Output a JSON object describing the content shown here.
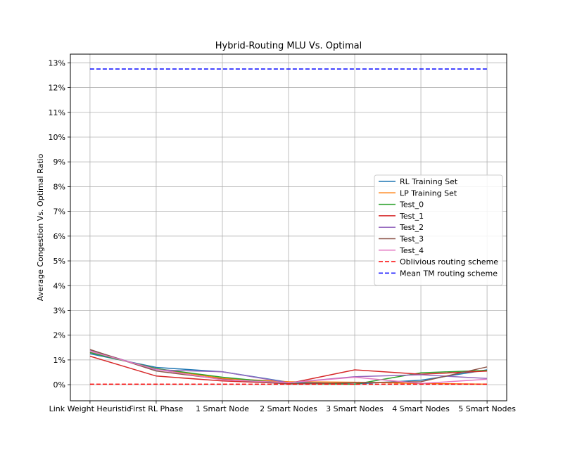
{
  "chart_data": {
    "type": "line",
    "title": "Hybrid-Routing MLU Vs. Optimal",
    "xlabel": "",
    "ylabel": "Average Congestion Vs. Optimal Ratio",
    "categories": [
      "Link Weight Heuristic",
      "First RL Phase",
      "1 Smart Node",
      "2 Smart Nodes",
      "3 Smart Nodes",
      "4 Smart Nodes",
      "5 Smart Nodes"
    ],
    "ylim": [
      -0.65,
      13.35
    ],
    "yticks": [
      0,
      1,
      2,
      3,
      4,
      5,
      6,
      7,
      8,
      9,
      10,
      11,
      12,
      13
    ],
    "ytick_labels": [
      "0%",
      "1%",
      "2%",
      "3%",
      "4%",
      "5%",
      "6%",
      "7%",
      "8%",
      "9%",
      "10%",
      "11%",
      "12%",
      "13%"
    ],
    "grid": true,
    "legend_position": "center-right",
    "series": [
      {
        "name": "RL Training Set",
        "color": "#1f77b4",
        "style": "solid",
        "values": [
          1.25,
          0.7,
          0.52,
          0.1,
          0.03,
          0.18,
          0.6
        ]
      },
      {
        "name": "LP Training Set",
        "color": "#ff7f0e",
        "style": "solid",
        "values": [
          1.3,
          0.65,
          0.25,
          0.12,
          0.1,
          0.05,
          0.02
        ]
      },
      {
        "name": "Test_0",
        "color": "#2ca02c",
        "style": "solid",
        "values": [
          1.3,
          0.65,
          0.3,
          0.05,
          0.02,
          0.48,
          0.58
        ]
      },
      {
        "name": "Test_1",
        "color": "#d62728",
        "style": "solid",
        "values": [
          1.15,
          0.35,
          0.15,
          0.05,
          0.6,
          0.42,
          0.55
        ]
      },
      {
        "name": "Test_2",
        "color": "#9467bd",
        "style": "solid",
        "values": [
          1.4,
          0.6,
          0.52,
          0.08,
          0.32,
          0.4,
          0.25
        ]
      },
      {
        "name": "Test_3",
        "color": "#8c564b",
        "style": "solid",
        "values": [
          1.42,
          0.55,
          0.22,
          0.03,
          0.08,
          0.12,
          0.72
        ]
      },
      {
        "name": "Test_4",
        "color": "#e377c2",
        "style": "solid",
        "values": [
          1.35,
          0.62,
          0.2,
          0.08,
          0.3,
          0.05,
          0.22
        ]
      },
      {
        "name": "Oblivious routing scheme",
        "color": "#ff0000",
        "style": "dashed",
        "values": [
          0.02,
          0.02,
          0.02,
          0.02,
          0.02,
          0.02,
          0.02
        ]
      },
      {
        "name": "Mean TM routing scheme",
        "color": "#0000ff",
        "style": "dashed",
        "values": [
          12.75,
          12.75,
          12.75,
          12.75,
          12.75,
          12.75,
          12.75
        ]
      }
    ]
  }
}
